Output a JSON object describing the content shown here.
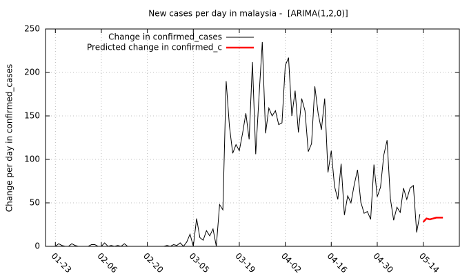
{
  "chart_data": {
    "type": "line",
    "title": "New cases per day in malaysia -  [ARIMA(1,2,0)]",
    "y_label": "Change per day in confirmed_cases",
    "legend": "top-left",
    "grid": true,
    "xlim": [
      "01-20",
      "05-25"
    ],
    "xticks": [
      "01-23",
      "02-06",
      "02-20",
      "03-05",
      "03-19",
      "04-02",
      "04-16",
      "04-30",
      "05-14"
    ],
    "ylim": [
      0,
      250
    ],
    "yticks": [
      0,
      50,
      100,
      150,
      200,
      250
    ],
    "series": [
      {
        "name": "Change in confirmed_cases",
        "color": "#000000",
        "width": 1,
        "x": [
          "01-23",
          "01-24",
          "01-25",
          "01-26",
          "01-27",
          "01-28",
          "01-29",
          "01-30",
          "01-31",
          "02-01",
          "02-02",
          "02-03",
          "02-04",
          "02-05",
          "02-06",
          "02-07",
          "02-08",
          "02-09",
          "02-10",
          "02-11",
          "02-12",
          "02-13",
          "02-14",
          "02-15",
          "02-16",
          "02-17",
          "02-18",
          "02-19",
          "02-20",
          "02-21",
          "02-22",
          "02-23",
          "02-24",
          "02-25",
          "02-26",
          "02-27",
          "02-28",
          "02-29",
          "03-01",
          "03-02",
          "03-03",
          "03-04",
          "03-05",
          "03-06",
          "03-07",
          "03-08",
          "03-09",
          "03-10",
          "03-11",
          "03-12",
          "03-13",
          "03-14",
          "03-15",
          "03-16",
          "03-17",
          "03-18",
          "03-19",
          "03-20",
          "03-21",
          "03-22",
          "03-23",
          "03-24",
          "03-25",
          "03-26",
          "03-27",
          "03-28",
          "03-29",
          "03-30",
          "03-31",
          "04-01",
          "04-02",
          "04-03",
          "04-04",
          "04-05",
          "04-06",
          "04-07",
          "04-08",
          "04-09",
          "04-10",
          "04-11",
          "04-12",
          "04-13",
          "04-14",
          "04-15",
          "04-16",
          "04-17",
          "04-18",
          "04-19",
          "04-20",
          "04-21",
          "04-22",
          "04-23",
          "04-24",
          "04-25",
          "04-26",
          "04-27",
          "04-28",
          "04-29",
          "04-30",
          "05-01",
          "05-02",
          "05-03",
          "05-04",
          "05-05",
          "05-06",
          "05-07",
          "05-08",
          "05-09",
          "05-10",
          "05-11",
          "05-12",
          "05-13"
        ],
        "values": [
          0,
          3,
          1,
          0,
          0,
          3,
          1,
          0,
          0,
          0,
          0,
          2,
          2,
          0,
          0,
          4,
          0,
          1,
          0,
          1,
          0,
          3,
          0,
          0,
          0,
          0,
          0,
          0,
          0,
          0,
          0,
          0,
          0,
          0,
          1,
          0,
          2,
          1,
          4,
          0,
          5,
          14,
          0,
          32,
          10,
          7,
          18,
          12,
          20,
          0,
          48,
          42,
          190,
          138,
          107,
          117,
          110,
          130,
          153,
          123,
          212,
          106,
          172,
          235,
          130,
          159,
          150,
          156,
          140,
          142,
          208,
          217,
          150,
          179,
          131,
          170,
          156,
          109,
          118,
          184,
          153,
          134,
          170,
          85,
          110,
          69,
          54,
          95,
          36,
          58,
          50,
          71,
          88,
          51,
          38,
          40,
          31,
          94,
          57,
          68,
          105,
          122,
          55,
          30,
          45,
          39,
          67,
          54,
          67,
          70,
          16,
          37
        ]
      },
      {
        "name": "Predicted change in confirmed_c",
        "color": "#ff0000",
        "width": 2.5,
        "x": [
          "05-14",
          "05-15",
          "05-16",
          "05-17",
          "05-18",
          "05-19",
          "05-20"
        ],
        "values": [
          28,
          32,
          31,
          32,
          33,
          33,
          33
        ]
      }
    ]
  }
}
